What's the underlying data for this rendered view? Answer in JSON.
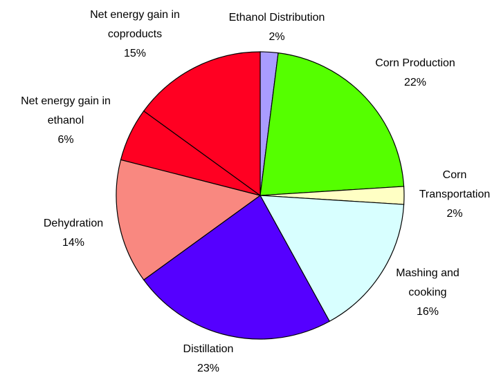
{
  "chart_data": {
    "type": "pie",
    "categories": [
      "Ethanol Distribution",
      "Corn Production",
      "Corn Transportation",
      "Mashing and cooking",
      "Distillation",
      "Dehydration",
      "Net energy gain in ethanol",
      "Net energy gain in coproducts"
    ],
    "values": [
      2,
      22,
      2,
      16,
      23,
      14,
      6,
      15
    ],
    "value_labels": [
      "2%",
      "22%",
      "2%",
      "16%",
      "23%",
      "14%",
      "6%",
      "15%"
    ],
    "colors": [
      "#a99cff",
      "#55ff00",
      "#ffffc4",
      "#d8ffff",
      "#5500ff",
      "#f98880",
      "#ff0022",
      "#ff0022"
    ]
  }
}
